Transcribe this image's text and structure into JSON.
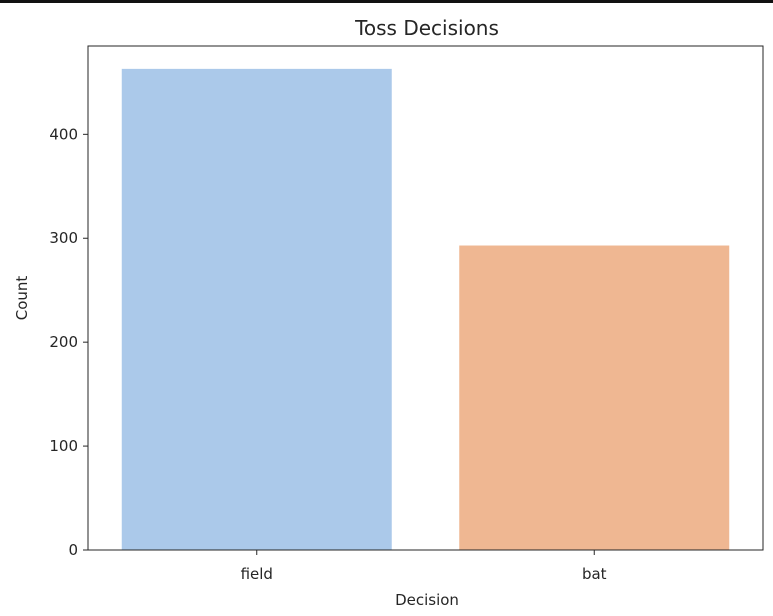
{
  "chart_data": {
    "type": "bar",
    "title": "Toss Decisions",
    "xlabel": "Decision",
    "ylabel": "Count",
    "categories": [
      "field",
      "bat"
    ],
    "values": [
      463,
      293
    ],
    "colors": [
      "#abc9ea",
      "#efb792"
    ],
    "ylim": [
      0,
      485
    ],
    "yticks": [
      0,
      100,
      200,
      300,
      400
    ],
    "grid": false,
    "legend": "none"
  }
}
